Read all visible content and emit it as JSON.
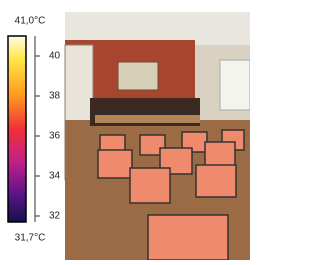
{
  "scale": {
    "max": {
      "value": 41.0,
      "label": "41,0°C"
    },
    "min": {
      "value": 31.7,
      "label": "31,7°C"
    },
    "ticks": [
      40,
      38,
      36,
      34,
      32
    ]
  }
}
